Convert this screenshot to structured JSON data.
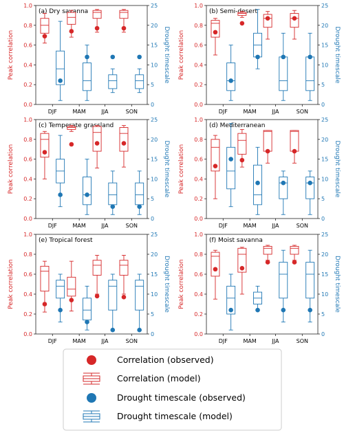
{
  "colors": {
    "red": "#d62728",
    "blue": "#1f77b4",
    "axis": "#222222"
  },
  "chart_data": [
    {
      "type": "boxplot",
      "title": "(a) Dry savanna",
      "categories": [
        "DJF",
        "MAM",
        "JJA",
        "SON"
      ],
      "ylabel_left": "Peak correlation",
      "ylabel_right": "Drought timescale",
      "ylim_left": [
        0,
        1.0
      ],
      "yticks_left": [
        "0.0",
        "0.2",
        "0.4",
        "0.6",
        "0.8",
        "1.0"
      ],
      "ylim_right": [
        0,
        25
      ],
      "yticks_right": [
        "0",
        "5",
        "10",
        "15",
        "20",
        "25"
      ],
      "correlation_observed": [
        0.69,
        0.74,
        0.77,
        0.77
      ],
      "correlation_model": [
        {
          "min": 0.62,
          "q1": 0.72,
          "median": 0.8,
          "q3": 0.87,
          "max": 0.92
        },
        {
          "min": 0.68,
          "q1": 0.81,
          "median": 0.88,
          "q3": 0.93,
          "max": 0.95
        },
        {
          "min": 0.73,
          "q1": 0.87,
          "median": 0.93,
          "q3": 0.95,
          "max": 0.96
        },
        {
          "min": 0.73,
          "q1": 0.87,
          "median": 0.93,
          "q3": 0.95,
          "max": 0.96
        }
      ],
      "timescale_observed": [
        6,
        12,
        12,
        12
      ],
      "timescale_model": [
        {
          "min": 1,
          "q1": 5,
          "median": 9,
          "q3": 13.5,
          "max": 21
        },
        {
          "min": 1,
          "q1": 3.5,
          "median": 6,
          "q3": 10.5,
          "max": 15
        },
        {
          "min": 3,
          "q1": 4,
          "median": 6,
          "q3": 7.5,
          "max": 9
        },
        {
          "min": 3,
          "q1": 4,
          "median": 6,
          "q3": 7.5,
          "max": 9
        }
      ]
    },
    {
      "type": "boxplot",
      "title": "(b) Semi-desert",
      "categories": [
        "DJF",
        "MAM",
        "JJA",
        "SON"
      ],
      "ylabel_left": "Peak correlation",
      "ylabel_right": "Drought timescale",
      "ylim_left": [
        0,
        1.0
      ],
      "yticks_left": [
        "0.0",
        "0.2",
        "0.4",
        "0.6",
        "0.8",
        "1.0"
      ],
      "ylim_right": [
        0,
        25
      ],
      "yticks_right": [
        "0",
        "5",
        "10",
        "15",
        "20",
        "25"
      ],
      "correlation_observed": [
        0.73,
        0.82,
        0.87,
        0.87
      ],
      "correlation_model": [
        {
          "min": 0.5,
          "q1": 0.68,
          "median": 0.82,
          "q3": 0.85,
          "max": 0.87
        },
        {
          "min": 0.88,
          "q1": 0.9,
          "median": 0.92,
          "q3": 0.93,
          "max": 0.94
        },
        {
          "min": 0.66,
          "q1": 0.78,
          "median": 0.87,
          "q3": 0.91,
          "max": 0.94
        },
        {
          "min": 0.66,
          "q1": 0.78,
          "median": 0.87,
          "q3": 0.92,
          "max": 0.95
        }
      ],
      "timescale_observed": [
        6,
        12,
        12,
        12
      ],
      "timescale_model": [
        {
          "min": 1,
          "q1": 3.5,
          "median": 6,
          "q3": 10.5,
          "max": 15
        },
        {
          "min": 9,
          "q1": 12,
          "median": 15,
          "q3": 18,
          "max": 24
        },
        {
          "min": 1,
          "q1": 3.5,
          "median": 6,
          "q3": 12,
          "max": 18
        },
        {
          "min": 1,
          "q1": 3.5,
          "median": 6,
          "q3": 12,
          "max": 18
        }
      ]
    },
    {
      "type": "boxplot",
      "title": "(c) Temperate grassland",
      "categories": [
        "DJF",
        "MAM",
        "JJA",
        "SON"
      ],
      "ylabel_left": "Peak correlation",
      "ylabel_right": "Drought timescale",
      "ylim_left": [
        0,
        1.0
      ],
      "yticks_left": [
        "0.0",
        "0.2",
        "0.4",
        "0.6",
        "0.8",
        "1.0"
      ],
      "ylim_right": [
        0,
        25
      ],
      "yticks_right": [
        "0",
        "5",
        "10",
        "15",
        "20",
        "25"
      ],
      "correlation_observed": [
        0.67,
        0.75,
        0.76,
        0.76
      ],
      "correlation_model": [
        {
          "min": 0.4,
          "q1": 0.62,
          "median": 0.8,
          "q3": 0.86,
          "max": 0.88
        },
        {
          "min": 0.88,
          "q1": 0.9,
          "median": 0.92,
          "q3": 0.93,
          "max": 0.94
        },
        {
          "min": 0.51,
          "q1": 0.68,
          "median": 0.87,
          "q3": 0.93,
          "max": 0.94
        },
        {
          "min": 0.52,
          "q1": 0.68,
          "median": 0.86,
          "q3": 0.92,
          "max": 0.94
        }
      ],
      "timescale_observed": [
        6,
        6,
        3,
        3
      ],
      "timescale_model": [
        {
          "min": 3,
          "q1": 9,
          "median": 12,
          "q3": 15,
          "max": 21
        },
        {
          "min": 1,
          "q1": 3.5,
          "median": 6,
          "q3": 10.5,
          "max": 15
        },
        {
          "min": 1,
          "q1": 3.5,
          "median": 6,
          "q3": 9,
          "max": 12
        },
        {
          "min": 1,
          "q1": 3.5,
          "median": 6,
          "q3": 9,
          "max": 12
        }
      ]
    },
    {
      "type": "boxplot",
      "title": "(d) Mediterranean",
      "categories": [
        "DJF",
        "MAM",
        "JJA",
        "SON"
      ],
      "ylabel_left": "Peak correlation",
      "ylabel_right": "Drought timescale",
      "ylim_left": [
        0,
        1.0
      ],
      "yticks_left": [
        "0.0",
        "0.2",
        "0.4",
        "0.6",
        "0.8",
        "1.0"
      ],
      "ylim_right": [
        0,
        25
      ],
      "yticks_right": [
        "0",
        "5",
        "10",
        "15",
        "20",
        "25"
      ],
      "correlation_observed": [
        0.53,
        0.59,
        0.68,
        0.68
      ],
      "correlation_model": [
        {
          "min": 0.2,
          "q1": 0.48,
          "median": 0.72,
          "q3": 0.8,
          "max": 0.84
        },
        {
          "min": 0.52,
          "q1": 0.65,
          "median": 0.79,
          "q3": 0.86,
          "max": 0.9
        },
        {
          "min": 0.56,
          "q1": 0.68,
          "median": 0.88,
          "q3": 0.89,
          "max": 0.89
        },
        {
          "min": 0.56,
          "q1": 0.68,
          "median": 0.88,
          "q3": 0.89,
          "max": 0.89
        }
      ],
      "timescale_observed": [
        15,
        9,
        9,
        9
      ],
      "timescale_model": [
        {
          "min": 3,
          "q1": 7.5,
          "median": 12,
          "q3": 18,
          "max": 24
        },
        {
          "min": 1,
          "q1": 3.5,
          "median": 6,
          "q3": 13.5,
          "max": 18
        },
        {
          "min": 1,
          "q1": 5,
          "median": 9,
          "q3": 10.5,
          "max": 12
        },
        {
          "min": 1,
          "q1": 5,
          "median": 9,
          "q3": 10.5,
          "max": 12
        }
      ]
    },
    {
      "type": "boxplot",
      "title": "(e) Tropical forest",
      "categories": [
        "DJF",
        "MAM",
        "JJA",
        "SON"
      ],
      "ylabel_left": "Peak correlation",
      "ylabel_right": "Drought timescale",
      "ylim_left": [
        0,
        1.0
      ],
      "yticks_left": [
        "0.0",
        "0.2",
        "0.4",
        "0.6",
        "0.8",
        "1.0"
      ],
      "ylim_right": [
        0,
        25
      ],
      "yticks_right": [
        "0",
        "5",
        "10",
        "15",
        "20",
        "25"
      ],
      "correlation_observed": [
        0.3,
        0.34,
        0.38,
        0.37
      ],
      "correlation_model": [
        {
          "min": 0.22,
          "q1": 0.43,
          "median": 0.63,
          "q3": 0.68,
          "max": 0.73
        },
        {
          "min": 0.23,
          "q1": 0.38,
          "median": 0.45,
          "q3": 0.57,
          "max": 0.73
        },
        {
          "min": 0.4,
          "q1": 0.59,
          "median": 0.69,
          "q3": 0.74,
          "max": 0.79
        },
        {
          "min": 0.4,
          "q1": 0.59,
          "median": 0.69,
          "q3": 0.74,
          "max": 0.79
        }
      ],
      "timescale_observed": [
        6,
        3,
        1,
        1
      ],
      "timescale_model": [
        {
          "min": 3,
          "q1": 9,
          "median": 12,
          "q3": 13.5,
          "max": 15
        },
        {
          "min": 1,
          "q1": 3.5,
          "median": 6,
          "q3": 9,
          "max": 12
        },
        {
          "min": 1,
          "q1": 6,
          "median": 12,
          "q3": 13.5,
          "max": 15
        },
        {
          "min": 1,
          "q1": 6,
          "median": 12,
          "q3": 13.5,
          "max": 15
        }
      ]
    },
    {
      "type": "boxplot",
      "title": "(f) Moist savanna",
      "categories": [
        "DJF",
        "MAM",
        "JJA",
        "SON"
      ],
      "ylabel_left": "Peak correlation",
      "ylabel_right": "Drought timescale",
      "ylim_left": [
        0,
        1.0
      ],
      "yticks_left": [
        "0.0",
        "0.2",
        "0.4",
        "0.6",
        "0.8",
        "1.0"
      ],
      "ylim_right": [
        0,
        25
      ],
      "yticks_right": [
        "0",
        "5",
        "10",
        "15",
        "20",
        "25"
      ],
      "correlation_observed": [
        0.65,
        0.66,
        0.72,
        0.72
      ],
      "correlation_model": [
        {
          "min": 0.35,
          "q1": 0.58,
          "median": 0.78,
          "q3": 0.82,
          "max": 0.84
        },
        {
          "min": 0.4,
          "q1": 0.62,
          "median": 0.8,
          "q3": 0.86,
          "max": 0.87
        },
        {
          "min": 0.74,
          "q1": 0.8,
          "median": 0.86,
          "q3": 0.88,
          "max": 0.89
        },
        {
          "min": 0.74,
          "q1": 0.8,
          "median": 0.86,
          "q3": 0.88,
          "max": 0.89
        }
      ],
      "timescale_observed": [
        6,
        6,
        6,
        6
      ],
      "timescale_model": [
        {
          "min": 1,
          "q1": 5,
          "median": 9,
          "q3": 12,
          "max": 15
        },
        {
          "min": 6,
          "q1": 7.5,
          "median": 9,
          "q3": 10.5,
          "max": 12
        },
        {
          "min": 3,
          "q1": 9,
          "median": 15,
          "q3": 18,
          "max": 21
        },
        {
          "min": 3,
          "q1": 9,
          "median": 15,
          "q3": 18,
          "max": 21
        }
      ]
    }
  ],
  "legend": {
    "correlation_observed": "Correlation (observed)",
    "correlation_model": "Correlation (model)",
    "timescale_observed": "Drought timescale (observed)",
    "timescale_model": "Drought timescale (model)"
  }
}
